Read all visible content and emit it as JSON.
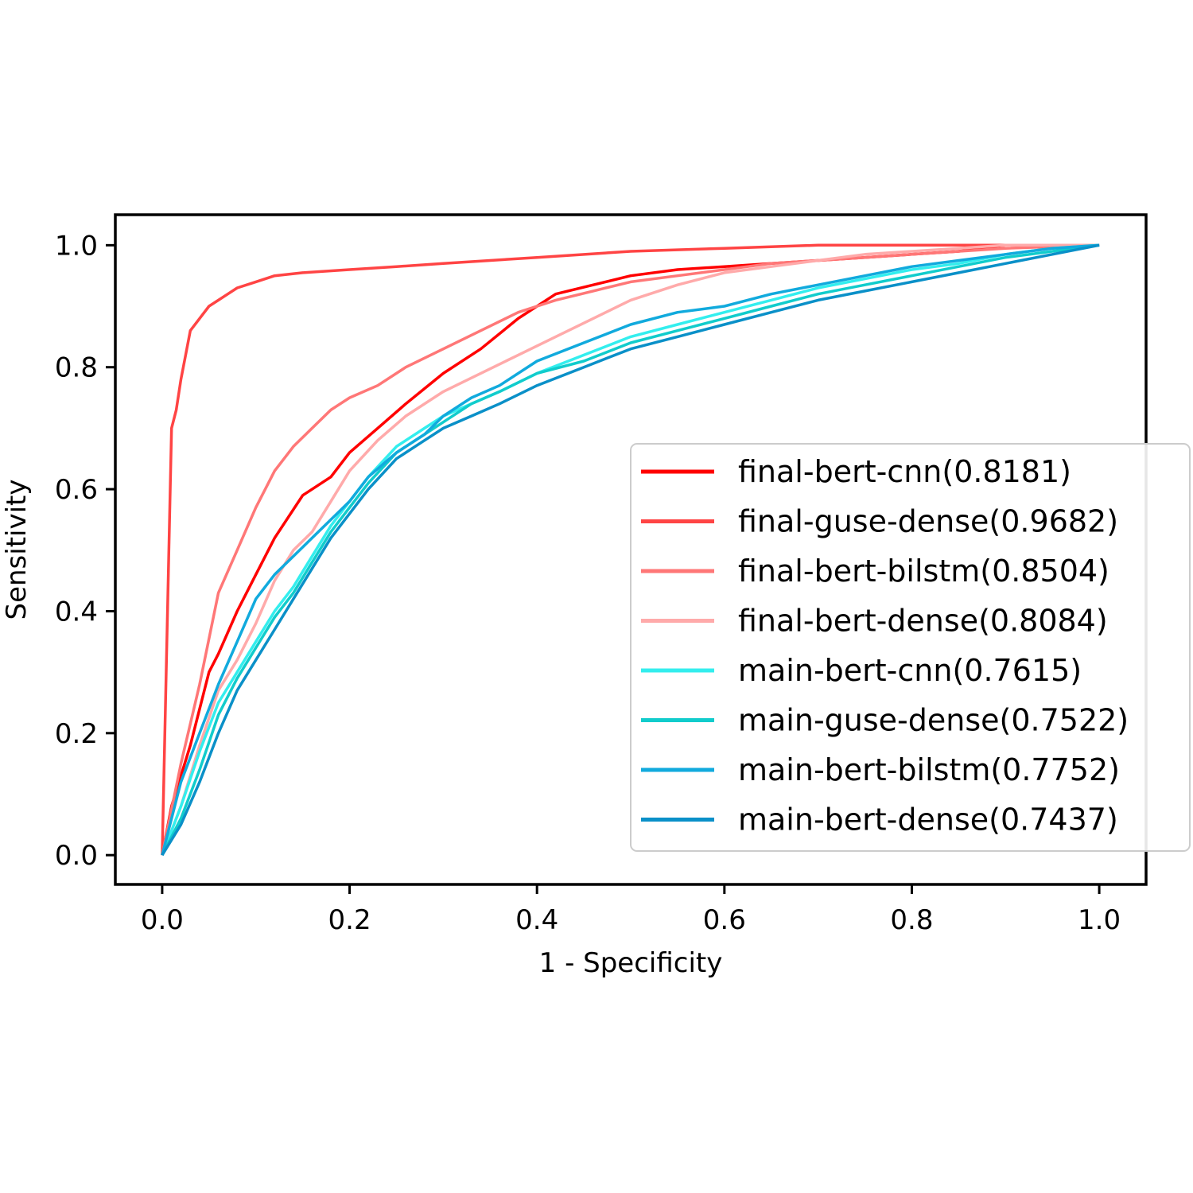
{
  "chart_data": {
    "type": "line",
    "title": "",
    "xlabel": "1 - Specificity",
    "ylabel": "Sensitivity",
    "xlim": [
      -0.05,
      1.05
    ],
    "ylim": [
      -0.048,
      1.05
    ],
    "xticks": [
      0.0,
      0.2,
      0.4,
      0.6,
      0.8,
      1.0
    ],
    "yticks": [
      0.0,
      0.2,
      0.4,
      0.6,
      0.8,
      1.0
    ],
    "xtick_labels": [
      "0.0",
      "0.2",
      "0.4",
      "0.6",
      "0.8",
      "1.0"
    ],
    "ytick_labels": [
      "0.0",
      "0.2",
      "0.4",
      "0.6",
      "0.8",
      "1.0"
    ],
    "grid": false,
    "legend_position": "center-right",
    "series": [
      {
        "name": "final-bert-cnn(0.8181)",
        "color": "#ff0000",
        "x": [
          0,
          0.01,
          0.03,
          0.05,
          0.06,
          0.08,
          0.1,
          0.12,
          0.15,
          0.18,
          0.2,
          0.23,
          0.26,
          0.3,
          0.34,
          0.38,
          0.42,
          0.46,
          0.5,
          0.55,
          0.6,
          0.65,
          0.7,
          0.75,
          0.8,
          0.85,
          0.9,
          0.95,
          1.0
        ],
        "y": [
          0,
          0.08,
          0.18,
          0.3,
          0.33,
          0.4,
          0.46,
          0.52,
          0.59,
          0.62,
          0.66,
          0.7,
          0.74,
          0.79,
          0.83,
          0.88,
          0.92,
          0.935,
          0.95,
          0.96,
          0.965,
          0.97,
          0.975,
          0.98,
          0.985,
          0.99,
          1.0,
          1.0,
          1.0
        ]
      },
      {
        "name": "final-guse-dense(0.9682)",
        "color": "#ff4444",
        "x": [
          0,
          0.005,
          0.01,
          0.015,
          0.02,
          0.025,
          0.03,
          0.04,
          0.05,
          0.06,
          0.07,
          0.08,
          0.1,
          0.12,
          0.15,
          0.2,
          0.25,
          0.3,
          0.35,
          0.4,
          0.5,
          0.6,
          0.7,
          0.8,
          0.9,
          1.0
        ],
        "y": [
          0,
          0.35,
          0.7,
          0.73,
          0.78,
          0.82,
          0.86,
          0.88,
          0.9,
          0.91,
          0.92,
          0.93,
          0.94,
          0.95,
          0.955,
          0.96,
          0.965,
          0.97,
          0.975,
          0.98,
          0.99,
          0.995,
          1.0,
          1.0,
          1.0,
          1.0
        ]
      },
      {
        "name": "final-bert-bilstm(0.8504)",
        "color": "#ff7777",
        "x": [
          0,
          0.02,
          0.04,
          0.06,
          0.08,
          0.1,
          0.12,
          0.14,
          0.16,
          0.18,
          0.2,
          0.23,
          0.26,
          0.3,
          0.34,
          0.38,
          0.42,
          0.46,
          0.5,
          0.55,
          0.6,
          0.65,
          0.7,
          0.75,
          0.8,
          0.85,
          0.9,
          1.0
        ],
        "y": [
          0,
          0.15,
          0.28,
          0.43,
          0.5,
          0.57,
          0.63,
          0.67,
          0.7,
          0.73,
          0.75,
          0.77,
          0.8,
          0.83,
          0.86,
          0.89,
          0.91,
          0.925,
          0.94,
          0.95,
          0.96,
          0.97,
          0.975,
          0.98,
          0.985,
          0.99,
          0.995,
          1.0
        ]
      },
      {
        "name": "final-bert-dense(0.8084)",
        "color": "#ffaaaa",
        "x": [
          0,
          0.02,
          0.04,
          0.06,
          0.08,
          0.1,
          0.12,
          0.14,
          0.16,
          0.18,
          0.2,
          0.23,
          0.26,
          0.3,
          0.34,
          0.38,
          0.42,
          0.46,
          0.5,
          0.55,
          0.6,
          0.65,
          0.7,
          0.75,
          0.8,
          0.85,
          0.9,
          1.0
        ],
        "y": [
          0,
          0.08,
          0.18,
          0.27,
          0.32,
          0.38,
          0.45,
          0.5,
          0.53,
          0.58,
          0.63,
          0.68,
          0.72,
          0.76,
          0.79,
          0.82,
          0.85,
          0.88,
          0.91,
          0.935,
          0.955,
          0.965,
          0.975,
          0.985,
          0.99,
          0.995,
          1.0,
          1.0
        ]
      },
      {
        "name": "main-bert-cnn(0.7615)",
        "color": "#33eeee",
        "x": [
          0,
          0.02,
          0.04,
          0.06,
          0.08,
          0.1,
          0.12,
          0.14,
          0.16,
          0.18,
          0.2,
          0.22,
          0.25,
          0.28,
          0.3,
          0.33,
          0.36,
          0.4,
          0.45,
          0.5,
          0.55,
          0.6,
          0.65,
          0.7,
          0.75,
          0.8,
          0.85,
          0.9,
          0.95,
          1.0
        ],
        "y": [
          0,
          0.08,
          0.17,
          0.25,
          0.3,
          0.35,
          0.4,
          0.44,
          0.49,
          0.54,
          0.58,
          0.62,
          0.67,
          0.7,
          0.72,
          0.74,
          0.76,
          0.79,
          0.82,
          0.85,
          0.87,
          0.89,
          0.91,
          0.93,
          0.945,
          0.96,
          0.97,
          0.985,
          0.995,
          1.0
        ]
      },
      {
        "name": "main-guse-dense(0.7522)",
        "color": "#11cccc",
        "x": [
          0,
          0.02,
          0.04,
          0.06,
          0.08,
          0.1,
          0.12,
          0.14,
          0.16,
          0.18,
          0.2,
          0.22,
          0.25,
          0.28,
          0.3,
          0.33,
          0.36,
          0.4,
          0.45,
          0.5,
          0.55,
          0.6,
          0.65,
          0.7,
          0.75,
          0.8,
          0.85,
          0.9,
          0.95,
          1.0
        ],
        "y": [
          0,
          0.06,
          0.14,
          0.23,
          0.29,
          0.34,
          0.39,
          0.43,
          0.48,
          0.53,
          0.57,
          0.61,
          0.66,
          0.69,
          0.71,
          0.74,
          0.76,
          0.79,
          0.81,
          0.84,
          0.86,
          0.88,
          0.9,
          0.92,
          0.935,
          0.95,
          0.965,
          0.98,
          0.99,
          1.0
        ]
      },
      {
        "name": "main-bert-bilstm(0.7752)",
        "color": "#11aadd",
        "x": [
          0,
          0.02,
          0.04,
          0.06,
          0.08,
          0.1,
          0.12,
          0.14,
          0.16,
          0.18,
          0.2,
          0.22,
          0.25,
          0.28,
          0.3,
          0.33,
          0.36,
          0.4,
          0.45,
          0.5,
          0.55,
          0.6,
          0.65,
          0.7,
          0.75,
          0.8,
          0.85,
          0.9,
          0.95,
          1.0
        ],
        "y": [
          0,
          0.12,
          0.2,
          0.28,
          0.35,
          0.42,
          0.46,
          0.49,
          0.52,
          0.55,
          0.58,
          0.62,
          0.66,
          0.69,
          0.72,
          0.75,
          0.77,
          0.81,
          0.84,
          0.87,
          0.89,
          0.9,
          0.92,
          0.935,
          0.95,
          0.965,
          0.975,
          0.985,
          0.995,
          1.0
        ]
      },
      {
        "name": "main-bert-dense(0.7437)",
        "color": "#0a90c8",
        "x": [
          0,
          0.02,
          0.04,
          0.06,
          0.08,
          0.1,
          0.12,
          0.14,
          0.16,
          0.18,
          0.2,
          0.22,
          0.25,
          0.28,
          0.3,
          0.33,
          0.36,
          0.4,
          0.45,
          0.5,
          0.55,
          0.6,
          0.65,
          0.7,
          0.75,
          0.8,
          0.85,
          0.9,
          0.95,
          1.0
        ],
        "y": [
          0,
          0.05,
          0.12,
          0.2,
          0.27,
          0.32,
          0.37,
          0.42,
          0.47,
          0.52,
          0.56,
          0.6,
          0.65,
          0.68,
          0.7,
          0.72,
          0.74,
          0.77,
          0.8,
          0.83,
          0.85,
          0.87,
          0.89,
          0.91,
          0.925,
          0.94,
          0.955,
          0.97,
          0.985,
          1.0
        ]
      }
    ]
  }
}
